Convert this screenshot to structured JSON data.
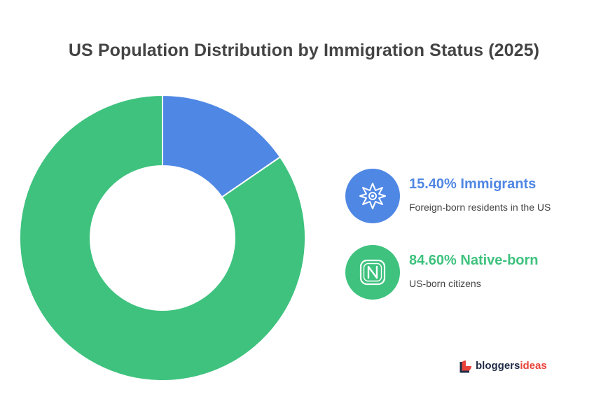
{
  "chart_data": {
    "type": "pie",
    "variant": "donut",
    "title": "US Population Distribution by Immigration Status (2025)",
    "slices": [
      {
        "key": "immigrants",
        "label": "Immigrants",
        "value": 15.4,
        "display_value": "15.40%",
        "description": "Foreign-born residents in the US",
        "color": "#4f87e4",
        "icon": "compass-star-icon"
      },
      {
        "key": "native",
        "label": "Native-born",
        "value": 84.6,
        "display_value": "84.60%",
        "description": "US-born citizens",
        "color": "#3ec27e",
        "icon": "n-badge-icon"
      }
    ],
    "start_angle_deg": 0,
    "direction": "clockwise",
    "legend_position": "right"
  },
  "legend": {
    "immigrants": {
      "heading": "15.40% Immigrants",
      "description": "Foreign-born residents in the US"
    },
    "native": {
      "heading": "84.60% Native-born",
      "description": "US-born citizens"
    }
  },
  "brand": {
    "name_part1": "bloggers",
    "name_part2": "ideas",
    "color_dark": "#1f2a44",
    "color_accent": "#e8433a"
  }
}
